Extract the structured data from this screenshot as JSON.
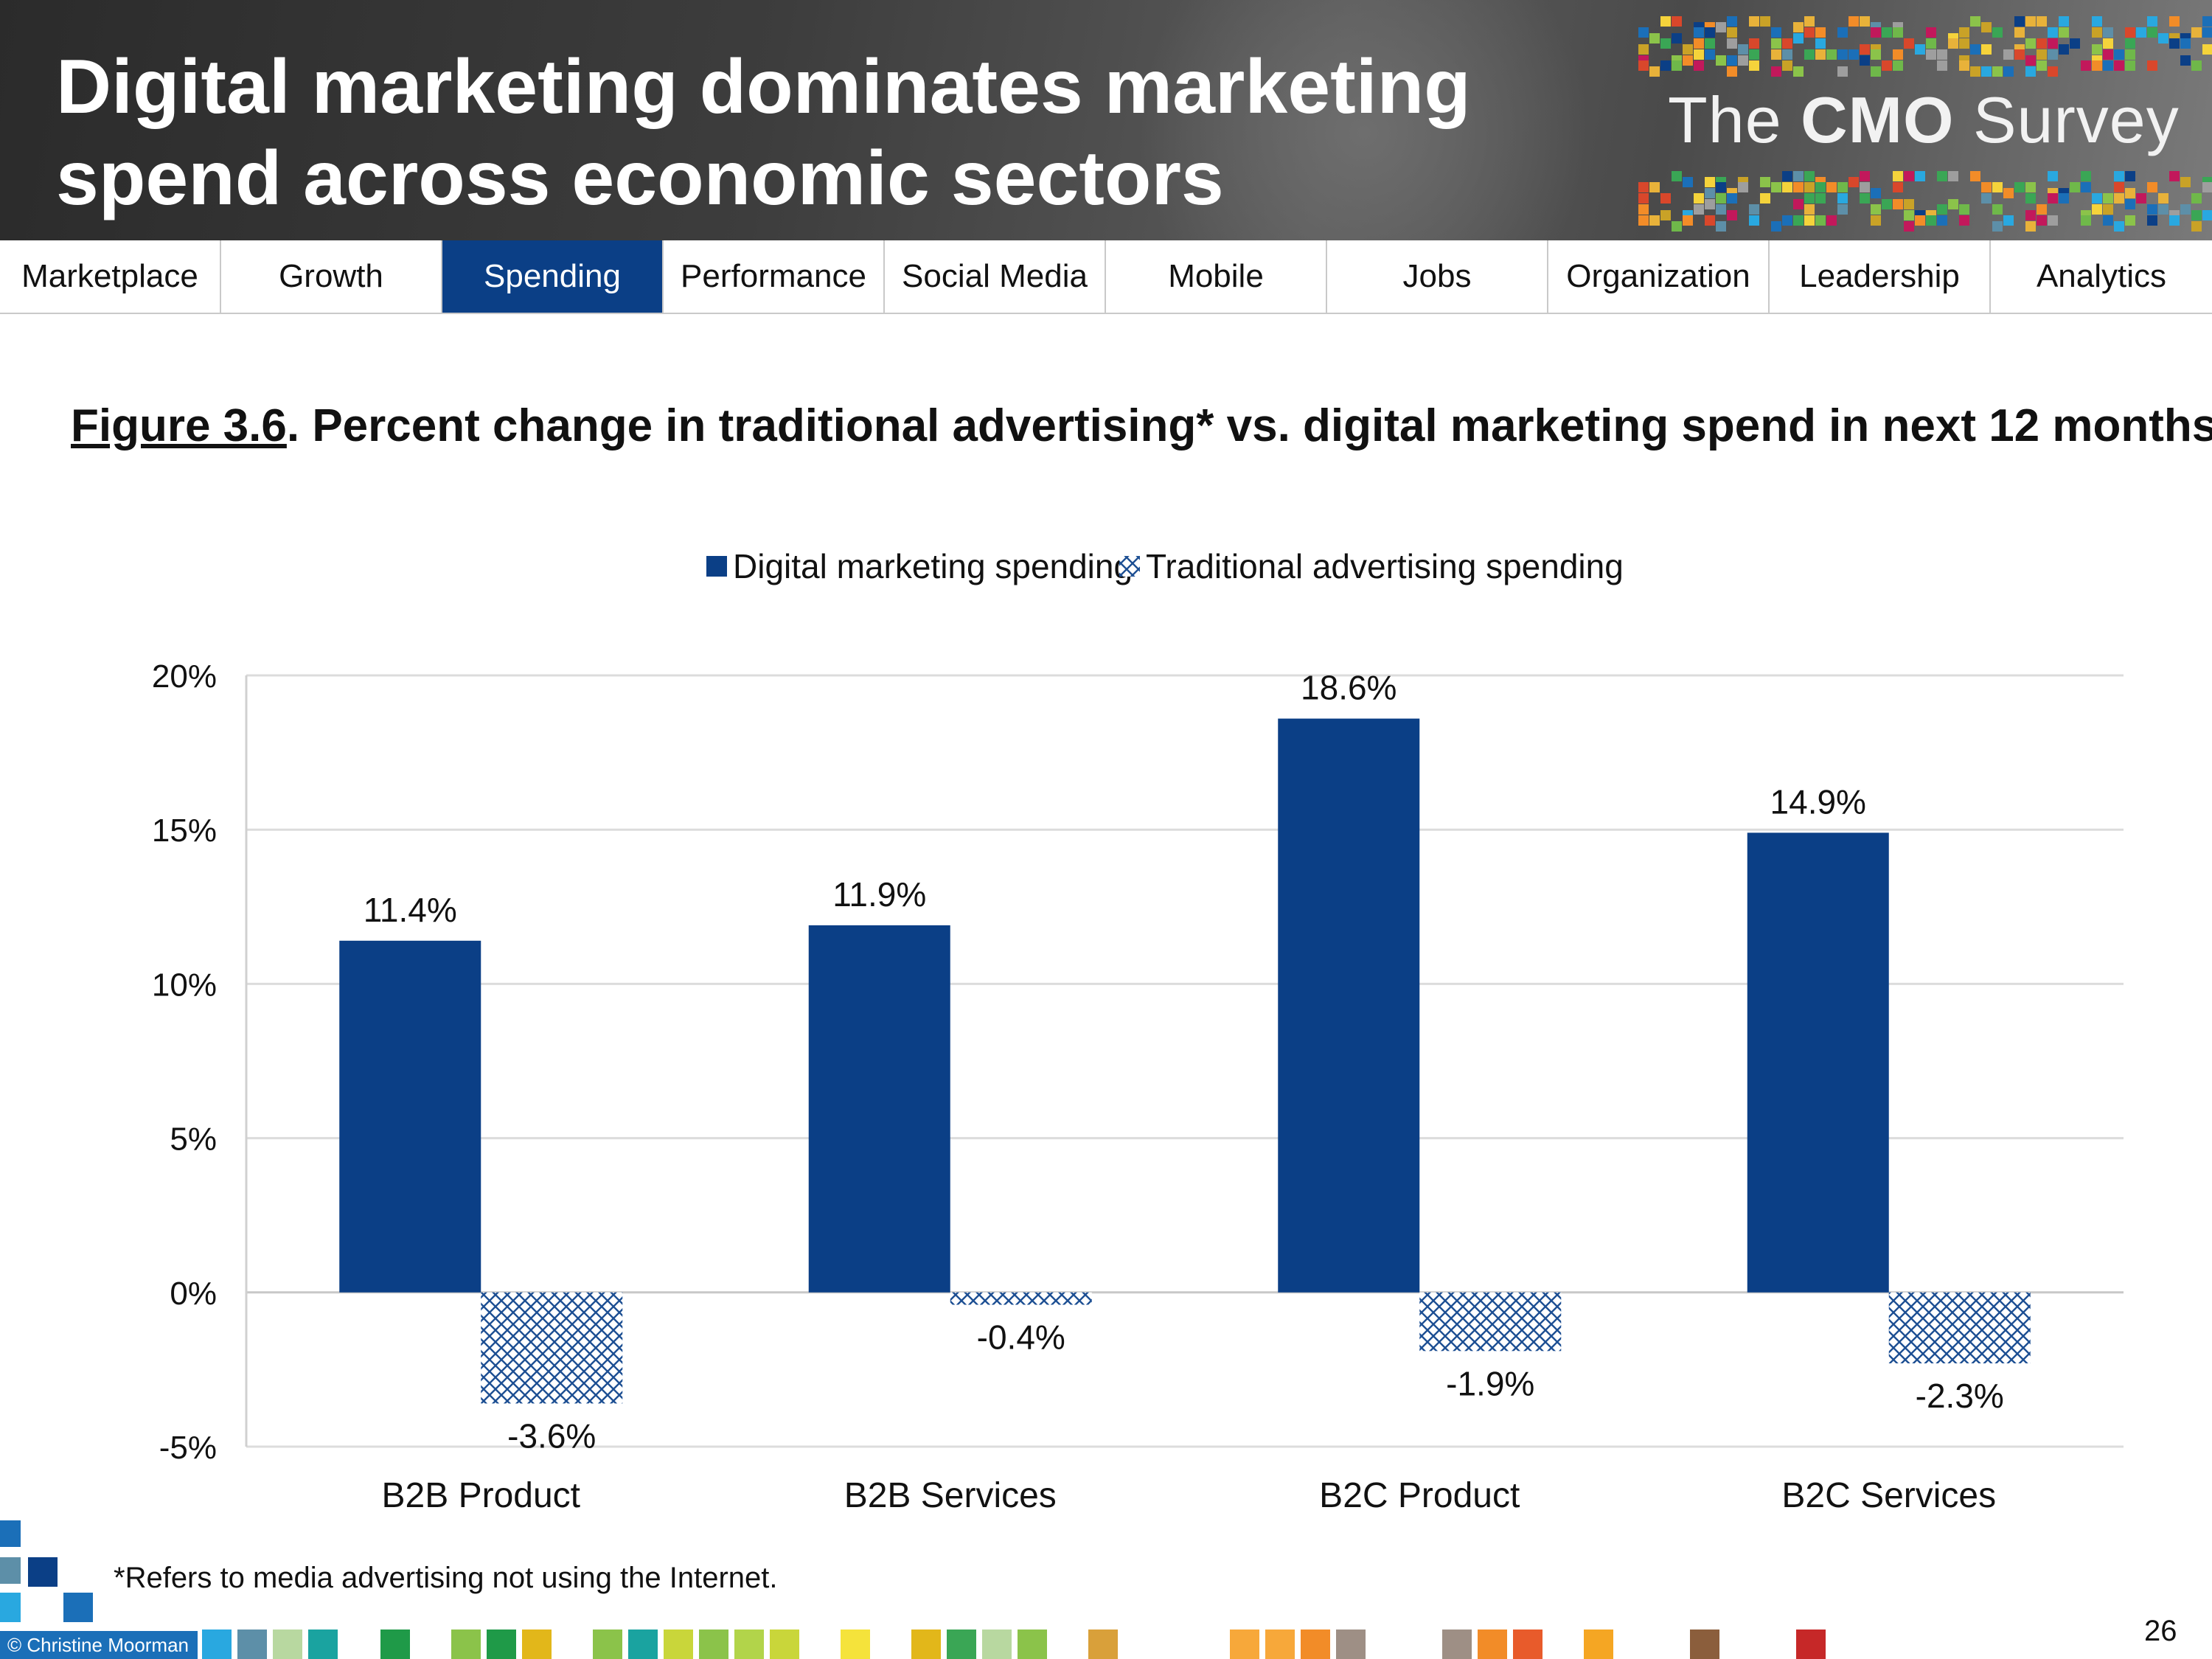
{
  "header": {
    "title_line1": "Digital marketing dominates marketing",
    "title_line2": "spend across economic sectors",
    "logo_prefix": "The ",
    "logo_bold": "CMO",
    "logo_suffix": " Survey"
  },
  "nav": {
    "tabs": [
      {
        "label": "Marketplace"
      },
      {
        "label": "Growth"
      },
      {
        "label": "Spending"
      },
      {
        "label": "Performance"
      },
      {
        "label": "Social Media"
      },
      {
        "label": "Mobile"
      },
      {
        "label": "Jobs"
      },
      {
        "label": "Organization"
      },
      {
        "label": "Leadership"
      },
      {
        "label": "Analytics"
      }
    ],
    "active": "Spending"
  },
  "figure": {
    "number": "Figure 3.6",
    "title": ".  Percent change in traditional advertising* vs. digital marketing spend in next 12 months"
  },
  "chart_data": {
    "type": "bar",
    "categories": [
      "B2B Product",
      "B2B Services",
      "B2C Product",
      "B2C Services"
    ],
    "series": [
      {
        "name": "Digital marketing spending",
        "values": [
          11.4,
          11.9,
          18.6,
          14.9
        ],
        "labels": [
          "11.4%",
          "11.9%",
          "18.6%",
          "14.9%"
        ],
        "color": "#0b3f86",
        "pattern": "solid"
      },
      {
        "name": "Traditional advertising spending",
        "values": [
          -3.6,
          -0.4,
          -1.9,
          -2.3
        ],
        "labels": [
          "-3.6%",
          "-0.4%",
          "-1.9%",
          "-2.3%"
        ],
        "color": "#1d4f93",
        "pattern": "crosshatch"
      }
    ],
    "ylim": [
      -5,
      20
    ],
    "yticks": [
      -5,
      0,
      5,
      10,
      15,
      20
    ],
    "ytick_labels": [
      "-5%",
      "0%",
      "5%",
      "10%",
      "15%",
      "20%"
    ],
    "grid": true,
    "legend_position": "top-center",
    "title": "",
    "xlabel": "",
    "ylabel": ""
  },
  "footnote": "*Refers to media advertising not using the Internet.",
  "copyright": "© Christine Moorman",
  "page_number": "26",
  "colors": {
    "accent": "#0b3f86",
    "header_bg": "#3d3d3d",
    "grid": "#d9d9d9"
  }
}
